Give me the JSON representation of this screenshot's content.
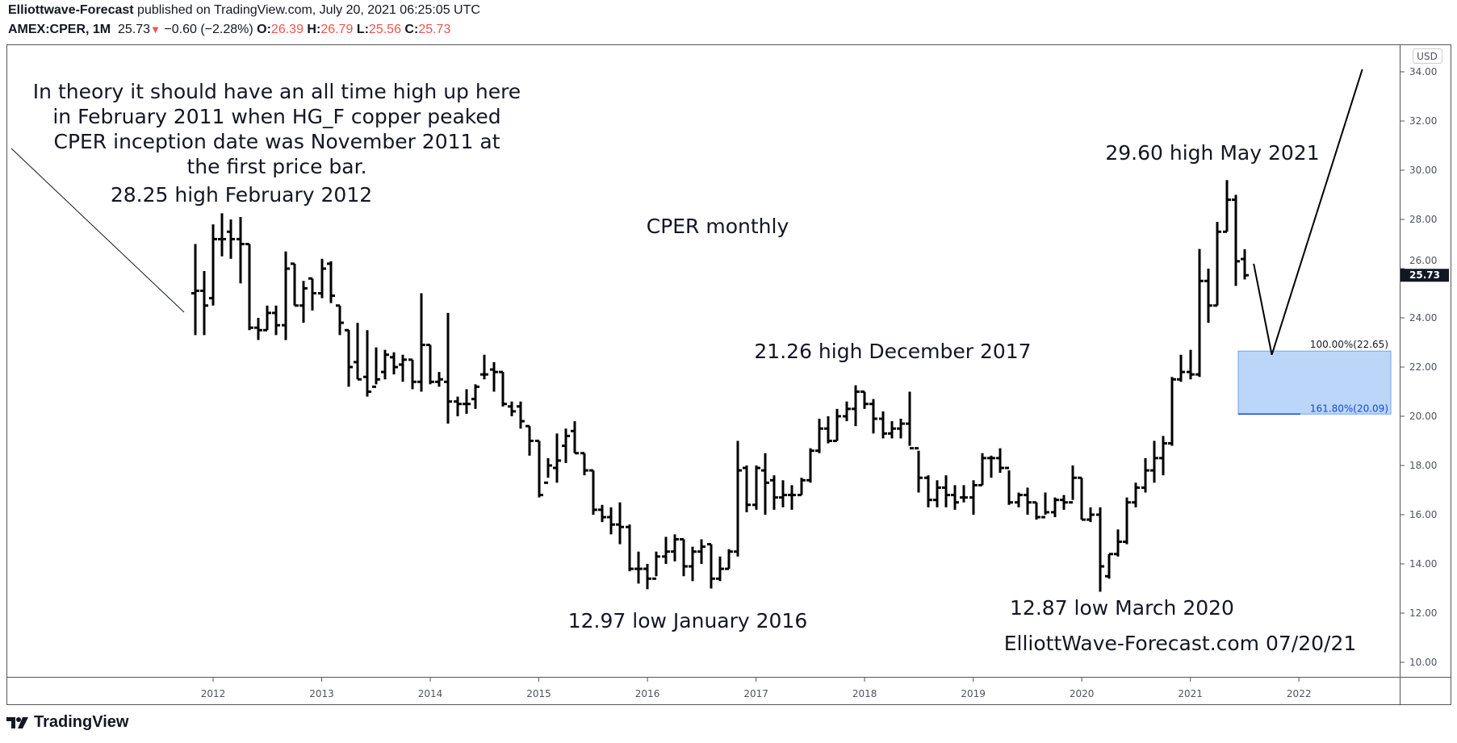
{
  "header": {
    "publisher": "Elliottwave-Forecast",
    "published_text": " published on TradingView.com, July 20, 2021 06:25:05 UTC",
    "symbol": "AMEX:CPER, 1M",
    "last": "25.73",
    "change": "−0.60 (−2.28%)",
    "o_label": "O:",
    "o": "26.39",
    "h_label": "H:",
    "h": "26.79",
    "l_label": "L:",
    "l": "25.56",
    "c_label": "C:",
    "c": "25.73",
    "down_color": "#ef5350"
  },
  "footer": {
    "logo": "TradingView"
  },
  "chart_data": {
    "type": "ohlc-bar",
    "currency": "USD",
    "ylim": [
      10,
      34
    ],
    "yticks": [
      "10.00",
      "12.00",
      "14.00",
      "16.00",
      "18.00",
      "20.00",
      "22.00",
      "24.00",
      "26.00",
      "28.00",
      "30.00",
      "32.00",
      "34.00"
    ],
    "xticks": [
      "2012",
      "2013",
      "2014",
      "2015",
      "2016",
      "2017",
      "2018",
      "2019",
      "2020",
      "2021",
      "2022"
    ],
    "last_price_label": "25.73",
    "grid": false,
    "start_month": "2011-11",
    "ohlc": [
      [
        25.0,
        27.0,
        23.3,
        25.1
      ],
      [
        25.1,
        25.9,
        23.3,
        24.5
      ],
      [
        24.8,
        27.8,
        24.5,
        27.2
      ],
      [
        27.2,
        28.25,
        26.5,
        27.2
      ],
      [
        27.5,
        28.0,
        26.4,
        27.2
      ],
      [
        27.2,
        28.1,
        25.4,
        27.0
      ],
      [
        27.0,
        27.0,
        23.5,
        23.6
      ],
      [
        23.6,
        24.0,
        23.1,
        23.5
      ],
      [
        23.5,
        24.5,
        23.5,
        24.2
      ],
      [
        24.2,
        24.5,
        23.3,
        23.7
      ],
      [
        23.7,
        26.7,
        23.1,
        26.0
      ],
      [
        26.2,
        26.2,
        24.5,
        24.5
      ],
      [
        24.5,
        25.5,
        23.8,
        25.2
      ],
      [
        25.6,
        25.6,
        24.3,
        25.0
      ],
      [
        25.0,
        26.4,
        24.8,
        26.0
      ],
      [
        26.2,
        26.3,
        24.6,
        24.9
      ],
      [
        24.5,
        24.5,
        23.3,
        23.8
      ],
      [
        23.5,
        23.5,
        21.2,
        22.0
      ],
      [
        22.2,
        23.8,
        21.5,
        21.5
      ],
      [
        21.6,
        23.5,
        20.8,
        21.0
      ],
      [
        21.2,
        22.8,
        21.3,
        21.5
      ],
      [
        21.8,
        22.7,
        21.5,
        22.5
      ],
      [
        22.4,
        22.6,
        21.7,
        22.0
      ],
      [
        22.1,
        22.5,
        21.4,
        22.3
      ],
      [
        22.3,
        22.3,
        21.1,
        21.4
      ],
      [
        21.4,
        25.0,
        21.0,
        22.9
      ],
      [
        22.9,
        22.9,
        21.3,
        21.4
      ],
      [
        21.4,
        21.8,
        21.2,
        21.5
      ],
      [
        21.4,
        24.2,
        19.7,
        20.6
      ],
      [
        20.6,
        20.8,
        20.0,
        20.5
      ],
      [
        20.5,
        21.1,
        20.1,
        20.5
      ],
      [
        20.7,
        21.3,
        20.3,
        21.2
      ],
      [
        21.7,
        22.5,
        21.5,
        21.7
      ],
      [
        21.9,
        22.2,
        21.0,
        21.8
      ],
      [
        21.8,
        21.8,
        20.4,
        20.5
      ],
      [
        20.4,
        20.6,
        20.0,
        20.2
      ],
      [
        20.4,
        20.6,
        19.5,
        19.8
      ],
      [
        19.6,
        19.6,
        18.4,
        19.0
      ],
      [
        19.0,
        19.0,
        16.7,
        16.8
      ],
      [
        17.3,
        18.3,
        17.5,
        18.0
      ],
      [
        17.9,
        19.3,
        17.3,
        18.2
      ],
      [
        18.8,
        19.5,
        18.1,
        19.2
      ],
      [
        19.4,
        19.8,
        18.5,
        18.5
      ],
      [
        18.5,
        18.5,
        17.6,
        17.8
      ],
      [
        17.8,
        17.8,
        16.0,
        16.2
      ],
      [
        16.2,
        16.4,
        15.7,
        15.9
      ],
      [
        15.9,
        16.3,
        15.2,
        15.6
      ],
      [
        15.6,
        16.5,
        14.8,
        15.5
      ],
      [
        15.5,
        15.6,
        13.7,
        13.8
      ],
      [
        13.8,
        14.5,
        13.2,
        13.8
      ],
      [
        13.8,
        14.0,
        12.97,
        13.4
      ],
      [
        13.4,
        14.5,
        13.5,
        14.3
      ],
      [
        14.3,
        15.1,
        14.0,
        14.5
      ],
      [
        14.5,
        15.2,
        14.1,
        15.0
      ],
      [
        15.0,
        15.0,
        13.5,
        13.9
      ],
      [
        13.9,
        14.7,
        13.3,
        14.5
      ],
      [
        14.5,
        15.0,
        14.0,
        14.7
      ],
      [
        14.8,
        14.8,
        13.0,
        13.4
      ],
      [
        13.4,
        14.3,
        13.3,
        13.8
      ],
      [
        13.8,
        14.6,
        13.8,
        14.5
      ],
      [
        14.5,
        19.0,
        14.3,
        17.8
      ],
      [
        17.9,
        18.0,
        16.1,
        16.4
      ],
      [
        16.4,
        18.0,
        16.2,
        17.9
      ],
      [
        17.8,
        18.5,
        16.0,
        17.3
      ],
      [
        17.4,
        17.6,
        16.2,
        16.7
      ],
      [
        16.7,
        17.4,
        16.3,
        16.8
      ],
      [
        16.8,
        17.2,
        16.2,
        16.8
      ],
      [
        16.8,
        17.5,
        16.8,
        17.4
      ],
      [
        17.4,
        18.7,
        17.3,
        18.6
      ],
      [
        18.6,
        19.9,
        18.5,
        19.5
      ],
      [
        19.5,
        20.0,
        18.9,
        19.0
      ],
      [
        19.0,
        20.3,
        19.0,
        20.0
      ],
      [
        20.0,
        20.6,
        19.8,
        20.3
      ],
      [
        20.3,
        21.26,
        19.6,
        21.0
      ],
      [
        21.0,
        21.0,
        20.3,
        20.5
      ],
      [
        20.5,
        20.7,
        19.3,
        19.9
      ],
      [
        19.9,
        20.2,
        19.1,
        19.3
      ],
      [
        19.3,
        19.8,
        19.1,
        19.5
      ],
      [
        19.5,
        19.9,
        19.1,
        19.7
      ],
      [
        19.7,
        21.0,
        18.8,
        18.7
      ],
      [
        18.7,
        18.6,
        16.9,
        17.5
      ],
      [
        17.5,
        17.6,
        16.3,
        16.6
      ],
      [
        16.6,
        17.4,
        16.3,
        17.1
      ],
      [
        17.1,
        17.6,
        16.3,
        16.8
      ],
      [
        16.8,
        17.2,
        16.2,
        16.5
      ],
      [
        16.7,
        17.2,
        16.5,
        16.7
      ],
      [
        16.7,
        17.4,
        16.0,
        17.2
      ],
      [
        17.2,
        18.5,
        17.2,
        18.3
      ],
      [
        18.3,
        18.4,
        17.5,
        18.3
      ],
      [
        18.3,
        18.7,
        17.7,
        17.9
      ],
      [
        17.9,
        17.8,
        16.4,
        16.5
      ],
      [
        16.5,
        16.9,
        16.3,
        16.8
      ],
      [
        16.8,
        17.1,
        16.0,
        16.5
      ],
      [
        16.5,
        16.5,
        15.8,
        15.9
      ],
      [
        15.9,
        16.9,
        16.0,
        16.1
      ],
      [
        16.1,
        16.7,
        15.9,
        16.6
      ],
      [
        16.6,
        16.8,
        16.2,
        16.5
      ],
      [
        16.5,
        18.0,
        16.6,
        17.5
      ],
      [
        17.5,
        17.5,
        15.8,
        15.8
      ],
      [
        15.8,
        16.3,
        15.7,
        16.0
      ],
      [
        16.0,
        16.3,
        12.87,
        13.9
      ],
      [
        13.5,
        14.4,
        13.4,
        14.4
      ],
      [
        14.4,
        15.4,
        14.3,
        14.9
      ],
      [
        14.9,
        16.7,
        14.8,
        16.5
      ],
      [
        16.5,
        17.3,
        16.3,
        17.1
      ],
      [
        17.1,
        18.3,
        16.9,
        17.8
      ],
      [
        17.8,
        19.0,
        17.3,
        18.3
      ],
      [
        18.3,
        19.2,
        17.6,
        18.9
      ],
      [
        18.9,
        21.6,
        18.8,
        21.5
      ],
      [
        21.5,
        22.5,
        21.4,
        21.8
      ],
      [
        21.8,
        22.7,
        21.5,
        21.7
      ],
      [
        21.7,
        26.8,
        21.6,
        25.5
      ],
      [
        25.5,
        26.0,
        23.8,
        24.5
      ],
      [
        24.5,
        27.9,
        24.5,
        27.5
      ],
      [
        27.5,
        29.6,
        27.5,
        28.8
      ],
      [
        28.8,
        29.0,
        25.3,
        26.3
      ],
      [
        26.39,
        26.79,
        25.56,
        25.73
      ]
    ],
    "projection_path": [
      [
        "2021-08",
        26.2
      ],
      [
        "2021-10",
        22.5
      ],
      [
        "2022-08",
        34.1
      ]
    ],
    "fib_zone": {
      "top": 22.65,
      "bottom": 20.09,
      "top_label": "100.00%(22.65)",
      "bottom_label": "161.80%(20.09)",
      "fill": "#bbd6f9",
      "line": "#1848cc"
    },
    "annotations": {
      "theory": [
        "In theory it should have an all time high up here",
        "in February 2011 when HG_F copper peaked",
        "CPER inception date was November 2011 at",
        "the first price bar."
      ],
      "high_2012": "28.25 high February 2012",
      "title": "CPER monthly",
      "high_2021": "29.60 high May 2021",
      "high_2017": "21.26 high December 2017",
      "low_2016": "12.97 low January 2016",
      "low_2020": "12.87 low March 2020",
      "watermark": "ElliottWave-Forecast.com 07/20/21"
    }
  }
}
